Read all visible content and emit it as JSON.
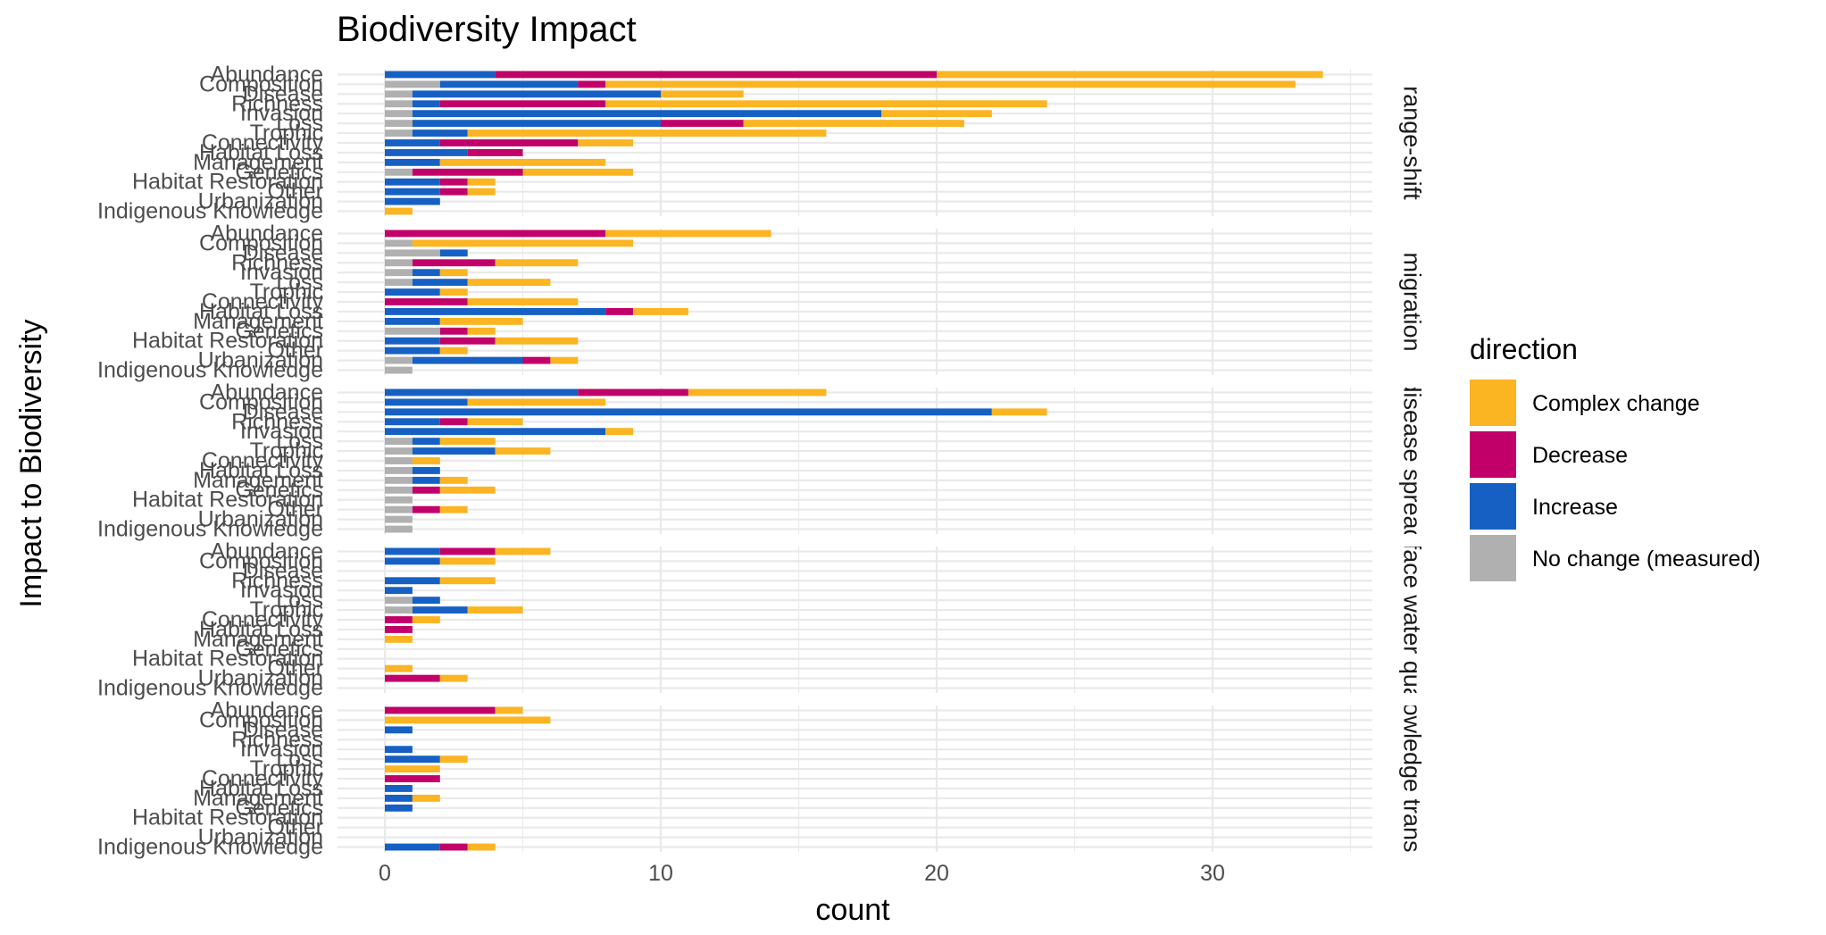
{
  "chart_data": {
    "type": "bar",
    "title": "Biodiversity Impact",
    "xlabel": "count",
    "ylabel": "Impact to Biodiversity",
    "xlim": [
      0,
      35
    ],
    "x_ticks": [
      0,
      10,
      20,
      30
    ],
    "grid": true,
    "legend_placement": "right",
    "legend_title": "direction",
    "stacked": true,
    "orientation": "horizontal",
    "categories": [
      "Indigenous Knowledge",
      "Urbanization",
      "Other",
      "Habitat Restoration",
      "Genetics",
      "Management",
      "Habitat Loss",
      "Connectivity",
      "Trophic",
      "Loss",
      "Invasion",
      "Richness",
      "Disease",
      "Composition",
      "Abundance"
    ],
    "series": [
      {
        "name": "No change (measured)",
        "color": "#b0b0b0"
      },
      {
        "name": "Increase",
        "color": "#1660c4"
      },
      {
        "name": "Decrease",
        "color": "#c2006a"
      },
      {
        "name": "Complex change",
        "color": "#fbb422"
      }
    ],
    "legend_order": [
      "Complex change",
      "Decrease",
      "Increase",
      "No change (measured)"
    ],
    "panels": [
      {
        "label": "range-shift",
        "values": [
          [
            0,
            0,
            0,
            1
          ],
          [
            0,
            2,
            0,
            0
          ],
          [
            0,
            2,
            1,
            1
          ],
          [
            0,
            2,
            1,
            1
          ],
          [
            1,
            0,
            4,
            4
          ],
          [
            0,
            2,
            0,
            6
          ],
          [
            0,
            3,
            2,
            0
          ],
          [
            0,
            2,
            5,
            2
          ],
          [
            1,
            2,
            0,
            13
          ],
          [
            1,
            9,
            3,
            8
          ],
          [
            1,
            17,
            0,
            4
          ],
          [
            1,
            1,
            6,
            16
          ],
          [
            1,
            9,
            0,
            3
          ],
          [
            2,
            5,
            1,
            25
          ],
          [
            0,
            4,
            16,
            14
          ]
        ]
      },
      {
        "label": "migration",
        "values": [
          [
            1,
            0,
            0,
            0
          ],
          [
            1,
            4,
            1,
            1
          ],
          [
            0,
            2,
            0,
            1
          ],
          [
            0,
            2,
            2,
            3
          ],
          [
            2,
            0,
            1,
            1
          ],
          [
            0,
            2,
            0,
            3
          ],
          [
            0,
            8,
            1,
            2
          ],
          [
            0,
            0,
            3,
            4
          ],
          [
            0,
            2,
            0,
            1
          ],
          [
            1,
            2,
            0,
            3
          ],
          [
            1,
            1,
            0,
            1
          ],
          [
            1,
            0,
            3,
            3
          ],
          [
            2,
            1,
            0,
            0
          ],
          [
            1,
            0,
            0,
            8
          ],
          [
            0,
            0,
            8,
            6
          ]
        ]
      },
      {
        "label": "disease spread",
        "values": [
          [
            1,
            0,
            0,
            0
          ],
          [
            1,
            0,
            0,
            0
          ],
          [
            1,
            0,
            1,
            1
          ],
          [
            1,
            0,
            0,
            0
          ],
          [
            1,
            0,
            1,
            2
          ],
          [
            1,
            1,
            0,
            1
          ],
          [
            1,
            1,
            0,
            0
          ],
          [
            1,
            0,
            0,
            1
          ],
          [
            1,
            3,
            0,
            2
          ],
          [
            1,
            1,
            0,
            2
          ],
          [
            0,
            8,
            0,
            1
          ],
          [
            0,
            2,
            1,
            2
          ],
          [
            0,
            22,
            0,
            2
          ],
          [
            0,
            3,
            0,
            5
          ],
          [
            0,
            7,
            4,
            5
          ]
        ]
      },
      {
        "label": "surface water quality",
        "values": [
          [
            0,
            0,
            0,
            0
          ],
          [
            0,
            0,
            2,
            1
          ],
          [
            0,
            0,
            0,
            1
          ],
          [
            0,
            0,
            0,
            0
          ],
          [
            0,
            0,
            0,
            0
          ],
          [
            0,
            0,
            0,
            1
          ],
          [
            0,
            0,
            1,
            0
          ],
          [
            0,
            0,
            1,
            1
          ],
          [
            1,
            2,
            0,
            2
          ],
          [
            1,
            1,
            0,
            0
          ],
          [
            0,
            1,
            0,
            0
          ],
          [
            0,
            2,
            0,
            2
          ],
          [
            0,
            0,
            0,
            0
          ],
          [
            0,
            2,
            0,
            2
          ],
          [
            0,
            2,
            2,
            2
          ]
        ]
      },
      {
        "label": "knowledge transfer",
        "values": [
          [
            0,
            2,
            1,
            1
          ],
          [
            0,
            0,
            0,
            0
          ],
          [
            0,
            0,
            0,
            0
          ],
          [
            0,
            0,
            0,
            0
          ],
          [
            0,
            1,
            0,
            0
          ],
          [
            0,
            1,
            0,
            1
          ],
          [
            0,
            1,
            0,
            0
          ],
          [
            0,
            0,
            2,
            0
          ],
          [
            0,
            0,
            0,
            2
          ],
          [
            0,
            2,
            0,
            1
          ],
          [
            0,
            1,
            0,
            0
          ],
          [
            0,
            0,
            0,
            0
          ],
          [
            0,
            1,
            0,
            0
          ],
          [
            0,
            0,
            0,
            6
          ],
          [
            0,
            0,
            4,
            1
          ]
        ]
      }
    ]
  }
}
